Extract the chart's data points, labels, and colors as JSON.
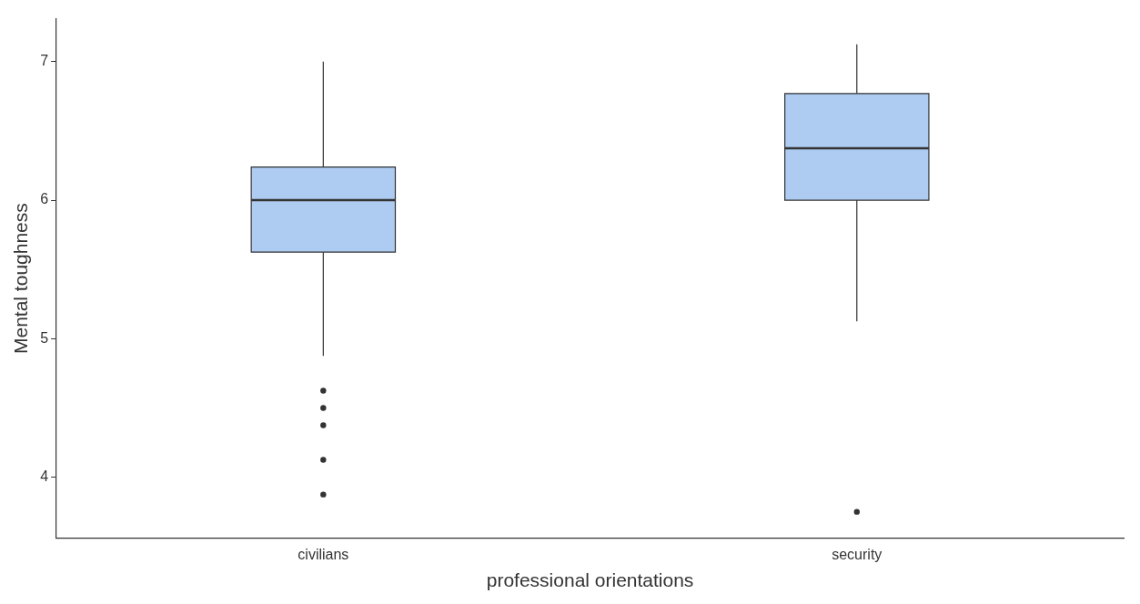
{
  "chart_data": {
    "type": "box",
    "xlabel": "professional orientations",
    "ylabel": "Mental toughness",
    "categories": [
      "civilians",
      "security"
    ],
    "boxes": [
      {
        "low": 4.875,
        "q1": 5.625,
        "median": 6.0,
        "q3": 6.24,
        "high": 7.0,
        "outliers": [
          4.625,
          4.5,
          4.375,
          4.125,
          3.875
        ]
      },
      {
        "low": 5.125,
        "q1": 6.0,
        "median": 6.375,
        "q3": 6.77,
        "high": 7.125,
        "outliers": [
          3.75
        ]
      }
    ],
    "color": "#aecbf2",
    "ylim": [
      3.56,
      7.31
    ],
    "yticks": [
      4,
      5,
      6,
      7
    ],
    "grid": false,
    "legend": false
  }
}
